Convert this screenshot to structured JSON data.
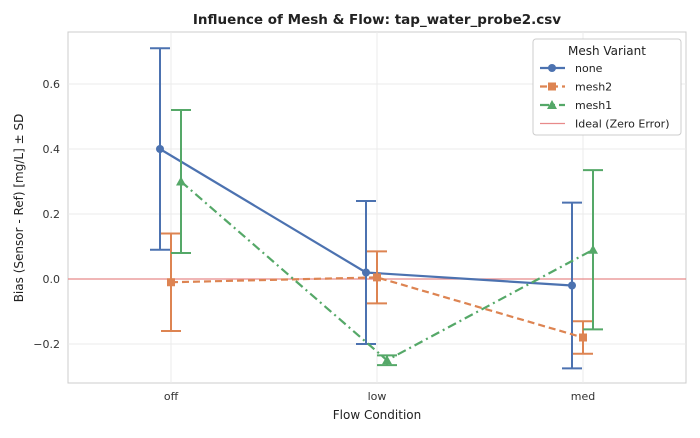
{
  "chart_data": {
    "type": "line",
    "title": "Influence of Mesh & Flow: tap_water_probe2.csv",
    "xlabel": "Flow Condition",
    "ylabel": "Bias (Sensor - Ref) [mg/L] ± SD",
    "categories": [
      "off",
      "low",
      "med"
    ],
    "ylim": [
      -0.32,
      0.76
    ],
    "yticks": [
      "0.6",
      "0.4",
      "0.2",
      "0.0",
      "−0.2"
    ],
    "ytick_values": [
      0.6,
      0.4,
      0.2,
      0.0,
      -0.2
    ],
    "grid": true,
    "legend_title": "Mesh Variant",
    "legend_position": "top-right",
    "series": [
      {
        "name": "none",
        "color": "#4c72b0",
        "marker": "circle",
        "linestyle": "solid",
        "values": [
          0.4,
          0.02,
          -0.02
        ],
        "sd": [
          0.31,
          0.22,
          0.255
        ]
      },
      {
        "name": "mesh2",
        "color": "#dd8452",
        "marker": "square",
        "linestyle": "dashed",
        "values": [
          -0.01,
          0.005,
          -0.18
        ],
        "sd": [
          0.15,
          0.08,
          0.05
        ]
      },
      {
        "name": "mesh1",
        "color": "#55a868",
        "marker": "triangle",
        "linestyle": "dashdot",
        "values": [
          0.3,
          -0.25,
          0.09
        ],
        "sd": [
          0.22,
          0.015,
          0.245
        ]
      }
    ],
    "reference_line": {
      "name": "Ideal (Zero Error)",
      "value": 0.0,
      "color": "#e88a8a"
    }
  }
}
